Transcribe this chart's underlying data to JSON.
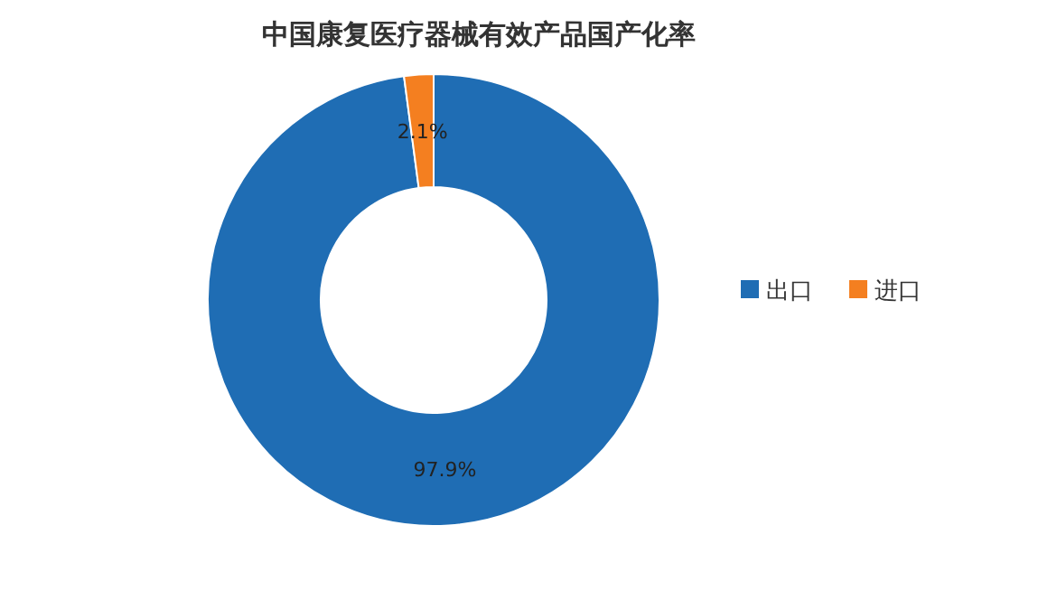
{
  "chart_data": {
    "type": "donut",
    "title": "中国康复医疗器械有效产品国产化率",
    "categories": [
      "出口",
      "进口"
    ],
    "values": [
      97.9,
      2.1
    ],
    "colors": [
      "#1f6db4",
      "#f47f20"
    ],
    "value_labels": [
      "97.9%",
      "2.1%"
    ],
    "legend": "right"
  }
}
